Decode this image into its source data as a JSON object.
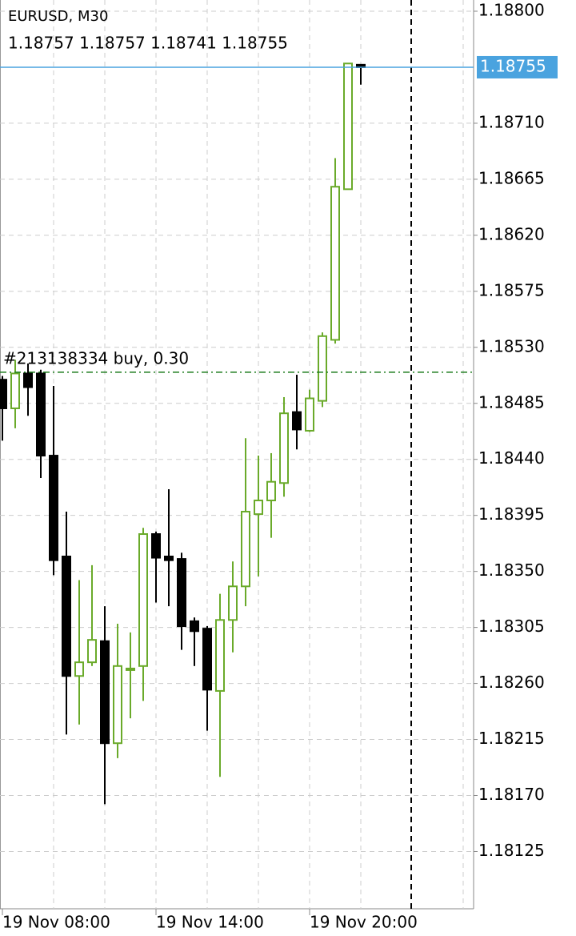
{
  "chart_data": {
    "type": "candlestick",
    "title": "EURUSD, M30",
    "ohlc_text": "1.18757 1.18757 1.18741 1.18755",
    "categories": [
      "19 Nov 08:00",
      null,
      null,
      null,
      null,
      null,
      null,
      null,
      null,
      null,
      null,
      null,
      "19 Nov 14:00",
      null,
      null,
      null,
      null,
      null,
      null,
      null,
      null,
      null,
      null,
      null,
      "19 Nov 20:00",
      null,
      null,
      null,
      null
    ],
    "open": [
      1.18504,
      1.18481,
      1.18509,
      1.18509,
      1.18443,
      1.18362,
      1.18266,
      1.18277,
      1.18294,
      1.18212,
      1.18271,
      1.18274,
      1.1838,
      1.18362,
      1.1836,
      1.1831,
      1.18304,
      1.18254,
      1.18311,
      1.18338,
      1.18396,
      1.18407,
      1.18421,
      1.18478,
      1.18463,
      1.18487,
      1.18536,
      1.18657,
      1.18757
    ],
    "high": [
      1.18507,
      1.1852,
      1.18517,
      1.18512,
      1.18499,
      1.18398,
      1.18343,
      1.18355,
      1.18322,
      1.18308,
      1.18301,
      1.18385,
      1.18382,
      1.18416,
      1.18365,
      1.18313,
      1.18306,
      1.18332,
      1.18358,
      1.18457,
      1.18443,
      1.18445,
      1.1849,
      1.18508,
      1.18496,
      1.18542,
      1.18682,
      1.18758,
      1.18757
    ],
    "low": [
      1.18455,
      1.18465,
      1.18475,
      1.18425,
      1.18347,
      1.18219,
      1.18227,
      1.18274,
      1.18163,
      1.182,
      1.18232,
      1.18246,
      1.18325,
      1.18322,
      1.18287,
      1.18274,
      1.18222,
      1.18185,
      1.18285,
      1.18322,
      1.18346,
      1.18377,
      1.1841,
      1.18448,
      1.18462,
      1.18482,
      1.18533,
      1.18657,
      1.18741
    ],
    "close": [
      1.18481,
      1.18509,
      1.18498,
      1.18443,
      1.18359,
      1.18266,
      1.18277,
      1.18295,
      1.18212,
      1.18274,
      1.18272,
      1.1838,
      1.18361,
      1.18359,
      1.18306,
      1.18302,
      1.18255,
      1.18311,
      1.18338,
      1.18398,
      1.18407,
      1.18422,
      1.18477,
      1.18464,
      1.18489,
      1.18539,
      1.18659,
      1.18758,
      1.18755
    ],
    "up_color": "#6aaa2a",
    "down_color": "#000000",
    "ylim": [
      1.18079,
      1.18809
    ],
    "yticks": [
      {
        "value": 1.188,
        "label": "1.18800"
      },
      {
        "value": 1.1871,
        "label": "1.18710"
      },
      1.18665,
      {
        "value": 1.1862,
        "label": "1.18620"
      },
      1.18575,
      {
        "value": 1.1853,
        "label": "1.18530"
      },
      1.18485,
      {
        "value": 1.1844,
        "label": "1.18440"
      },
      1.18395,
      {
        "value": 1.1835,
        "label": "1.18350"
      },
      1.18305,
      {
        "value": 1.1826,
        "label": "1.18260"
      },
      1.18215,
      {
        "value": 1.1817,
        "label": "1.18170"
      },
      1.18125
    ],
    "grid": true,
    "bid": 1.18755,
    "bid_color": "#4aa3df",
    "order": {
      "label": "#213138334 buy, 0.30",
      "price": 1.1851,
      "color": "#1e7d1e"
    }
  }
}
